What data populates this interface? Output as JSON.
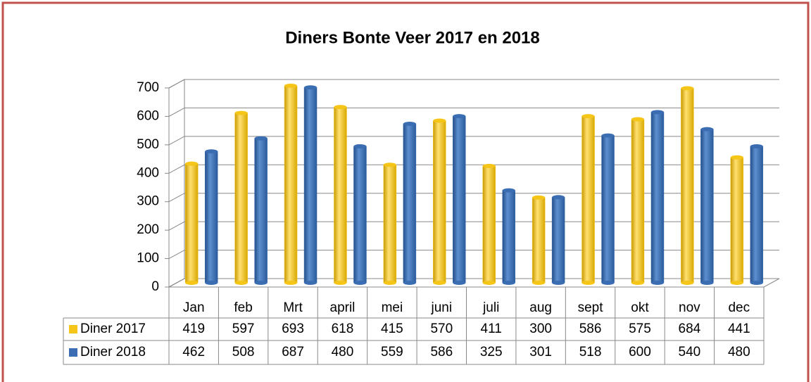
{
  "chart_data": {
    "type": "bar",
    "title": "Diners Bonte Veer 2017 en 2018",
    "categories": [
      "Jan",
      "feb",
      "Mrt",
      "april",
      "mei",
      "juni",
      "juli",
      "aug",
      "sept",
      "okt",
      "nov",
      "dec"
    ],
    "series": [
      {
        "name": "Diner 2017",
        "color": "#f5c518",
        "values": [
          419,
          597,
          693,
          618,
          415,
          570,
          411,
          300,
          586,
          575,
          684,
          441
        ]
      },
      {
        "name": "Diner 2018",
        "color": "#3b6db3",
        "values": [
          462,
          508,
          687,
          480,
          559,
          586,
          325,
          301,
          518,
          600,
          540,
          480
        ]
      }
    ],
    "ylim": [
      0,
      700
    ],
    "yticks": [
      0,
      100,
      200,
      300,
      400,
      500,
      600,
      700
    ],
    "grid": true
  }
}
